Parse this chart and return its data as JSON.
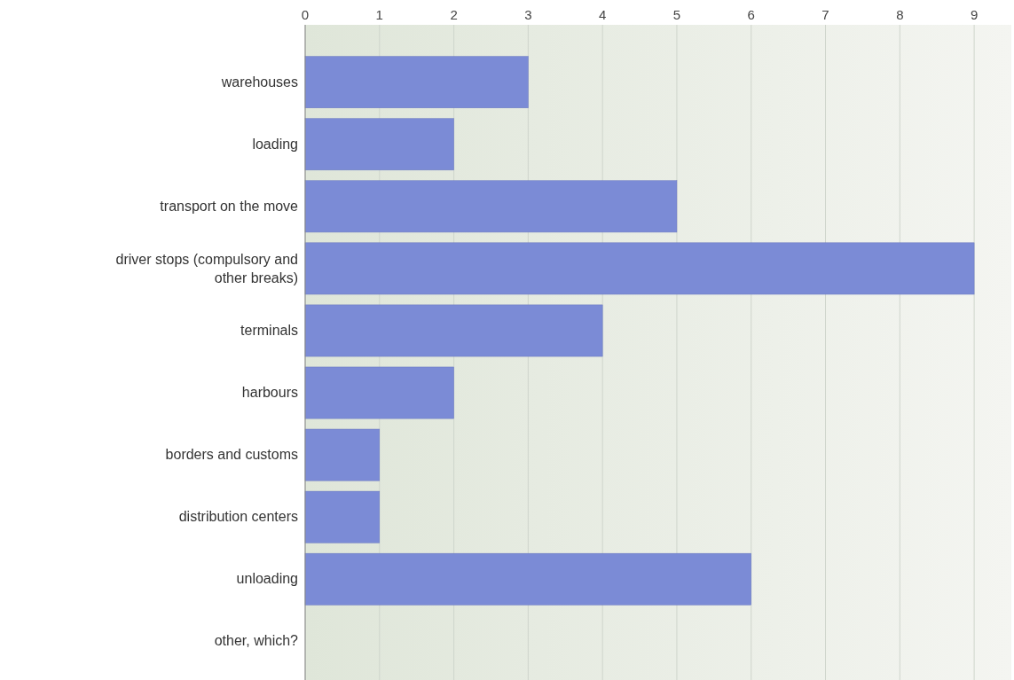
{
  "chart_data": {
    "type": "bar",
    "orientation": "horizontal",
    "categories": [
      "warehouses",
      "loading",
      "transport on the move",
      "driver stops (compulsory and other breaks)",
      "terminals",
      "harbours",
      "borders and customs",
      "distribution centers",
      "unloading",
      "other, which?"
    ],
    "values": [
      3,
      2,
      5,
      9,
      4,
      2,
      1,
      1,
      6,
      0
    ],
    "color": "#7b8bd6",
    "xlim": [
      0,
      9.5
    ],
    "xticks": [
      0,
      1,
      2,
      3,
      4,
      5,
      6,
      7,
      8,
      9
    ],
    "grid": "x"
  }
}
